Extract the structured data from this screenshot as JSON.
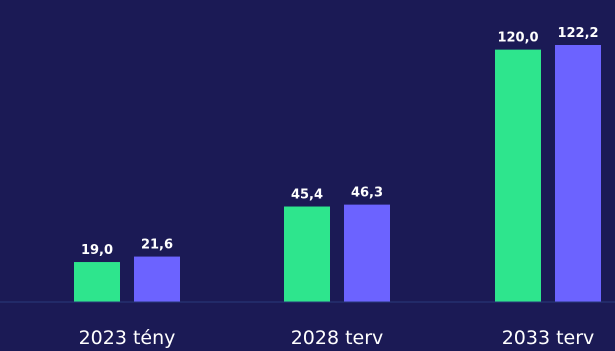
{
  "chart_data": {
    "type": "bar",
    "categories": [
      "2023 tény",
      "2028 terv",
      "2033 terv"
    ],
    "series": [
      {
        "values": [
          19.0,
          45.4,
          120.0
        ],
        "labels": [
          "19,0",
          "45,4",
          "120,0"
        ],
        "color": "#2ee58d"
      },
      {
        "values": [
          21.6,
          46.3,
          122.2
        ],
        "labels": [
          "21,6",
          "46,3",
          "122,2"
        ],
        "color": "#6c63ff"
      }
    ],
    "ylim": [
      0,
      122.2
    ],
    "grid": false,
    "title": "",
    "xlabel": "",
    "ylabel": ""
  },
  "colors": {
    "background": "#1b1a55",
    "baseline": "#2a3a7a",
    "text": "#ffffff"
  }
}
